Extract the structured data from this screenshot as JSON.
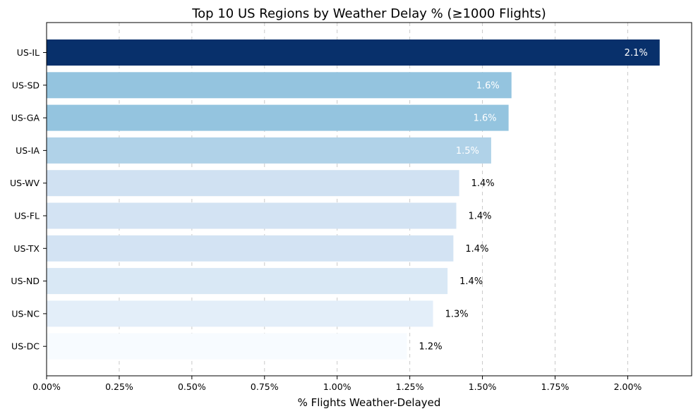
{
  "chart_data": {
    "type": "bar",
    "orientation": "horizontal",
    "title": "Top 10 US Regions by Weather Delay % (≥1000 Flights)",
    "xlabel": "% Flights Weather-Delayed",
    "ylabel": "",
    "xlim": [
      0,
      2.22
    ],
    "xticks": [
      0,
      0.25,
      0.5,
      0.75,
      1.0,
      1.25,
      1.5,
      1.75,
      2.0
    ],
    "xtick_labels": [
      "0.00%",
      "0.25%",
      "0.50%",
      "0.75%",
      "1.00%",
      "1.25%",
      "1.50%",
      "1.75%",
      "2.00%"
    ],
    "grid": "x-dashed",
    "categories": [
      "US-IL",
      "US-SD",
      "US-GA",
      "US-IA",
      "US-WV",
      "US-FL",
      "US-TX",
      "US-ND",
      "US-NC",
      "US-DC"
    ],
    "values": [
      2.11,
      1.6,
      1.59,
      1.53,
      1.42,
      1.41,
      1.4,
      1.38,
      1.33,
      1.24
    ],
    "data_labels": [
      "2.1%",
      "1.6%",
      "1.6%",
      "1.5%",
      "1.4%",
      "1.4%",
      "1.4%",
      "1.4%",
      "1.3%",
      "1.2%"
    ],
    "colors": [
      "#08306b",
      "#94c4df",
      "#94c4df",
      "#b0d2e8",
      "#d0e1f2",
      "#d3e3f3",
      "#d3e3f3",
      "#d9e8f5",
      "#e3eef9",
      "#f7fbff"
    ],
    "label_colors": [
      "#ffffff",
      "#ffffff",
      "#ffffff",
      "#ffffff",
      "#000000",
      "#000000",
      "#000000",
      "#000000",
      "#000000",
      "#000000"
    ],
    "label_inside": [
      true,
      true,
      true,
      true,
      false,
      false,
      false,
      false,
      false,
      false
    ]
  }
}
